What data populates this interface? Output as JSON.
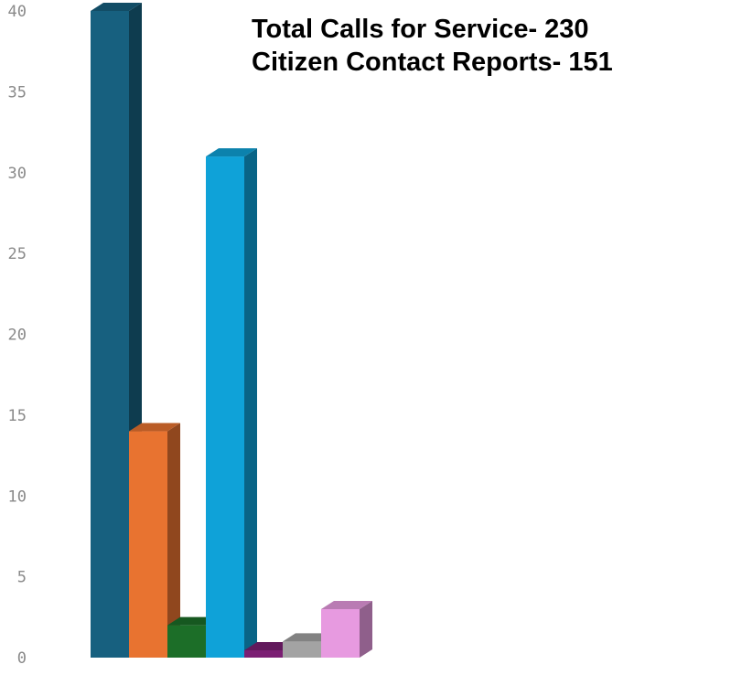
{
  "chart_data": {
    "type": "bar",
    "title_lines": [
      "Total Calls for Service- 230",
      "Citizen Contact Reports- 151"
    ],
    "xlabel": "",
    "ylabel": "",
    "ylim": [
      0,
      40
    ],
    "y_ticks": [
      "0",
      "5",
      "10",
      "15",
      "20",
      "25",
      "30",
      "35",
      "40"
    ],
    "grid": false,
    "legend": "none",
    "style": "3d",
    "values": [
      40,
      14,
      2,
      31,
      0,
      1,
      3
    ],
    "colors": [
      "#17607f",
      "#e87330",
      "#1c6e28",
      "#0fa2d8",
      "#7b1f73",
      "#a3a3a3",
      "#e79ae0"
    ]
  }
}
